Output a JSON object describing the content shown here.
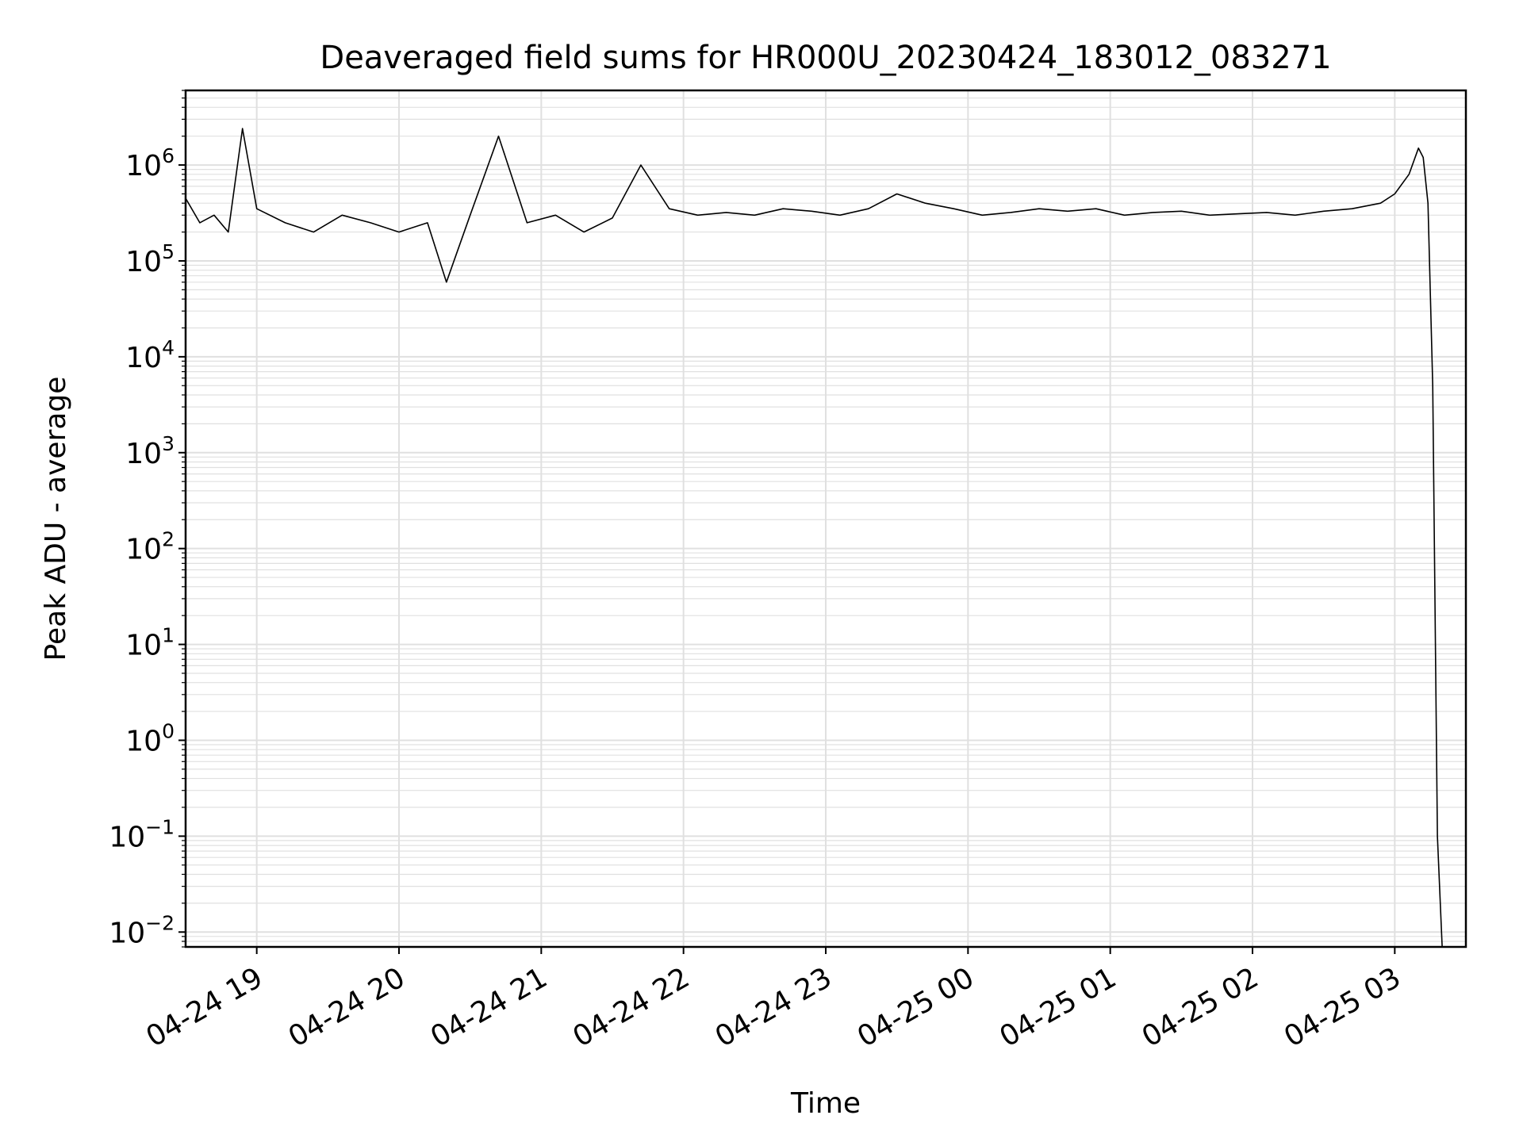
{
  "chart_data": {
    "type": "line",
    "title": "Deaveraged field sums for HR000U_20230424_183012_083271",
    "xlabel": "Time",
    "ylabel": "Peak ADU - average",
    "yscale": "log",
    "ylim": [
      0.007,
      6000000
    ],
    "xlim": [
      "2023-04-24 18:30",
      "2023-04-25 03:30"
    ],
    "grid": true,
    "line_color": "#000000",
    "grid_color": "#e0e0e0",
    "x_ticks": [
      {
        "value": "2023-04-24 19:00",
        "label": "04-24 19"
      },
      {
        "value": "2023-04-24 20:00",
        "label": "04-24 20"
      },
      {
        "value": "2023-04-24 21:00",
        "label": "04-24 21"
      },
      {
        "value": "2023-04-24 22:00",
        "label": "04-24 22"
      },
      {
        "value": "2023-04-24 23:00",
        "label": "04-24 23"
      },
      {
        "value": "2023-04-25 00:00",
        "label": "04-25 00"
      },
      {
        "value": "2023-04-25 01:00",
        "label": "04-25 01"
      },
      {
        "value": "2023-04-25 02:00",
        "label": "04-25 02"
      },
      {
        "value": "2023-04-25 03:00",
        "label": "04-25 03"
      }
    ],
    "y_ticks": [
      {
        "value": 0.01,
        "label": "10",
        "exp": "−2"
      },
      {
        "value": 0.1,
        "label": "10",
        "exp": "−1"
      },
      {
        "value": 1,
        "label": "10",
        "exp": "0"
      },
      {
        "value": 10,
        "label": "10",
        "exp": "1"
      },
      {
        "value": 100,
        "label": "10",
        "exp": "2"
      },
      {
        "value": 1000,
        "label": "10",
        "exp": "3"
      },
      {
        "value": 10000,
        "label": "10",
        "exp": "4"
      },
      {
        "value": 100000,
        "label": "10",
        "exp": "5"
      },
      {
        "value": 1000000,
        "label": "10",
        "exp": "6"
      }
    ],
    "series": [
      {
        "x": [
          "2023-04-24 18:30",
          "2023-04-24 18:36",
          "2023-04-24 18:42",
          "2023-04-24 18:48",
          "2023-04-24 18:54",
          "2023-04-24 19:00",
          "2023-04-24 19:12",
          "2023-04-24 19:24",
          "2023-04-24 19:36",
          "2023-04-24 19:48",
          "2023-04-24 20:00",
          "2023-04-24 20:12",
          "2023-04-24 20:20",
          "2023-04-24 20:30",
          "2023-04-24 20:42",
          "2023-04-24 20:54",
          "2023-04-24 21:06",
          "2023-04-24 21:18",
          "2023-04-24 21:30",
          "2023-04-24 21:42",
          "2023-04-24 21:54",
          "2023-04-24 22:06",
          "2023-04-24 22:18",
          "2023-04-24 22:30",
          "2023-04-24 22:42",
          "2023-04-24 22:54",
          "2023-04-24 23:06",
          "2023-04-24 23:18",
          "2023-04-24 23:30",
          "2023-04-24 23:42",
          "2023-04-24 23:54",
          "2023-04-25 00:06",
          "2023-04-25 00:18",
          "2023-04-25 00:30",
          "2023-04-25 00:42",
          "2023-04-25 00:54",
          "2023-04-25 01:06",
          "2023-04-25 01:18",
          "2023-04-25 01:30",
          "2023-04-25 01:42",
          "2023-04-25 01:54",
          "2023-04-25 02:06",
          "2023-04-25 02:18",
          "2023-04-25 02:30",
          "2023-04-25 02:42",
          "2023-04-25 02:54",
          "2023-04-25 03:00",
          "2023-04-25 03:06",
          "2023-04-25 03:10",
          "2023-04-25 03:12",
          "2023-04-25 03:14",
          "2023-04-25 03:16",
          "2023-04-25 03:18",
          "2023-04-25 03:20"
        ],
        "y": [
          450000,
          250000,
          300000,
          200000,
          2400000,
          350000,
          250000,
          200000,
          300000,
          250000,
          200000,
          250000,
          60000,
          300000,
          2000000,
          250000,
          300000,
          200000,
          280000,
          1000000,
          350000,
          300000,
          320000,
          300000,
          350000,
          330000,
          300000,
          350000,
          500000,
          400000,
          350000,
          300000,
          320000,
          350000,
          330000,
          350000,
          300000,
          320000,
          330000,
          300000,
          310000,
          320000,
          300000,
          330000,
          350000,
          400000,
          500000,
          800000,
          1500000,
          1200000,
          400000,
          5000,
          0.1,
          0.007
        ]
      }
    ]
  }
}
